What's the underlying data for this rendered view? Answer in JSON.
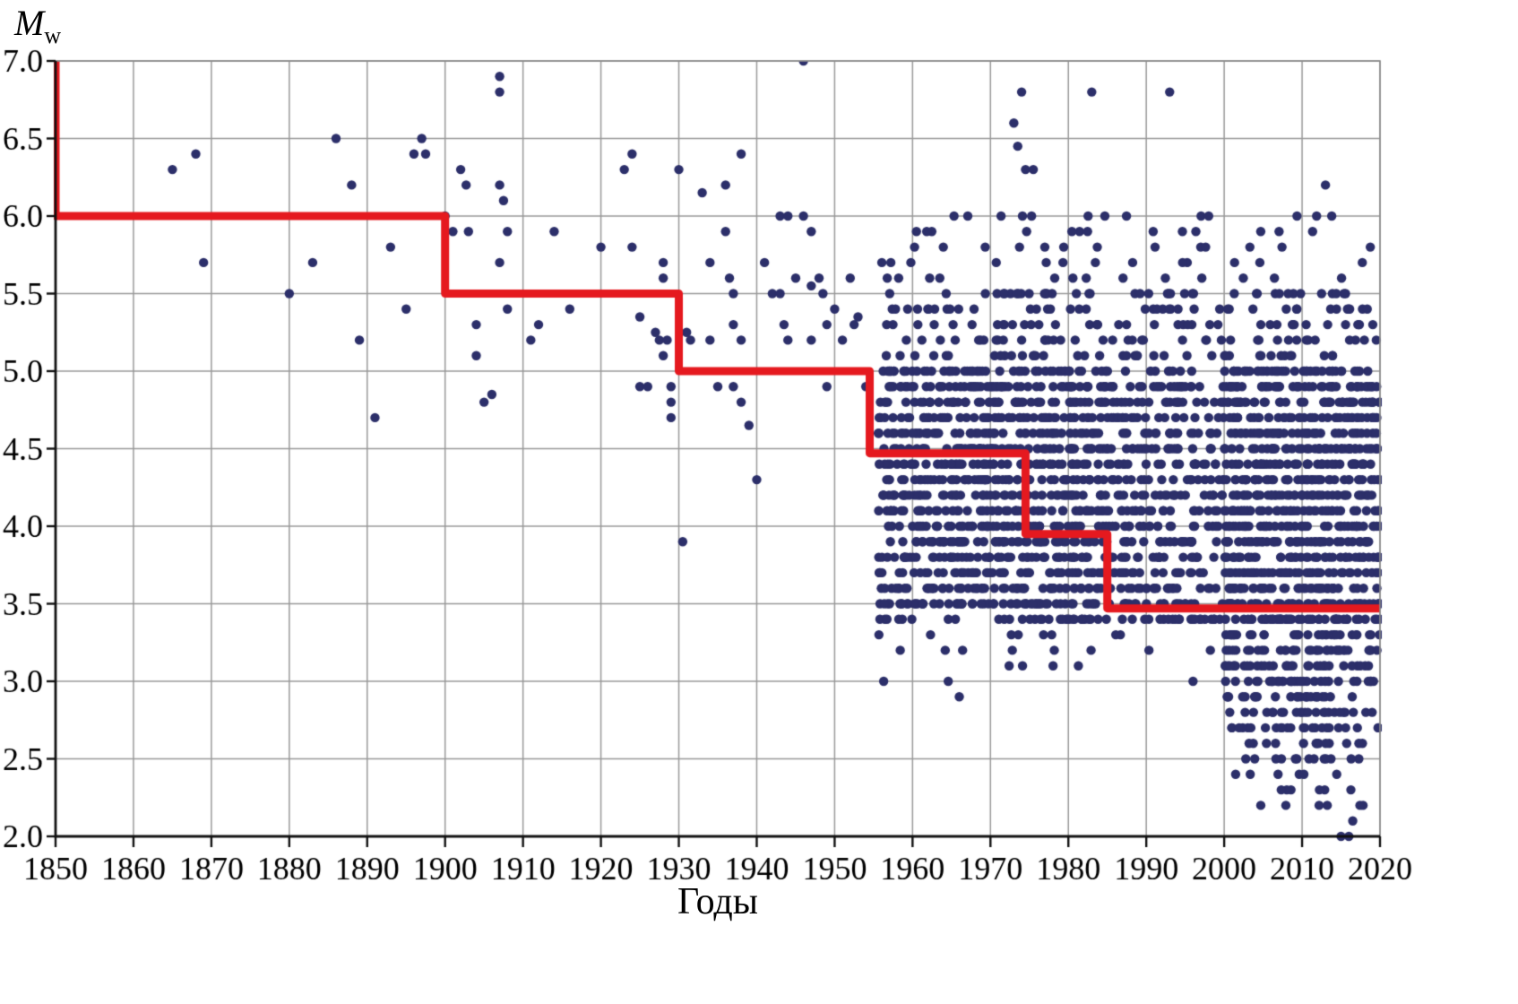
{
  "chart_data": {
    "type": "scatter",
    "xlabel": "Годы",
    "ylabel_main": "M",
    "ylabel_sub": "w",
    "xlim": [
      1850,
      2020
    ],
    "ylim": [
      2.0,
      7.0
    ],
    "x_ticks": [
      1850,
      1860,
      1870,
      1880,
      1890,
      1900,
      1910,
      1920,
      1930,
      1940,
      1950,
      1960,
      1970,
      1980,
      1990,
      2000,
      2010,
      2020
    ],
    "y_ticks": [
      2.0,
      2.5,
      3.0,
      3.5,
      4.0,
      4.5,
      5.0,
      5.5,
      6.0,
      6.5,
      7.0
    ],
    "grid": true,
    "grid_color": "#999999",
    "axis_color": "#111111",
    "point_color": "#2c2f6a",
    "point_radius": 5.2,
    "mag_step": 0.1,
    "random_seed": 7,
    "completeness_line": {
      "color": "#e5191f",
      "width": 9,
      "points": [
        [
          1850,
          7.0
        ],
        [
          1850,
          6.0
        ],
        [
          1900,
          6.0
        ],
        [
          1900,
          5.5
        ],
        [
          1930,
          5.5
        ],
        [
          1930,
          5.0
        ],
        [
          1954.5,
          5.0
        ],
        [
          1954.5,
          4.47
        ],
        [
          1974.5,
          4.47
        ],
        [
          1974.5,
          3.95
        ],
        [
          1985,
          3.95
        ],
        [
          1985,
          3.47
        ],
        [
          2020,
          3.47
        ]
      ]
    },
    "events": [
      [
        1865,
        6.3
      ],
      [
        1868,
        6.4
      ],
      [
        1869,
        5.7
      ],
      [
        1880,
        5.5
      ],
      [
        1883,
        5.7
      ],
      [
        1886,
        6.5
      ],
      [
        1888,
        6.2
      ],
      [
        1889,
        5.2
      ],
      [
        1891,
        4.7
      ],
      [
        1893,
        5.8
      ],
      [
        1895,
        5.4
      ],
      [
        1896,
        6.4
      ],
      [
        1897,
        6.5
      ],
      [
        1897.5,
        6.4
      ],
      [
        1900,
        6.0
      ],
      [
        1901,
        5.9
      ],
      [
        1902,
        6.3
      ],
      [
        1902.7,
        6.2
      ],
      [
        1903,
        5.9
      ],
      [
        1904,
        5.3
      ],
      [
        1904,
        5.1
      ],
      [
        1905,
        4.8
      ],
      [
        1906,
        4.85
      ],
      [
        1907,
        6.9
      ],
      [
        1907,
        6.8
      ],
      [
        1907,
        6.2
      ],
      [
        1907.5,
        6.1
      ],
      [
        1908,
        5.9
      ],
      [
        1907,
        5.7
      ],
      [
        1908,
        5.4
      ],
      [
        1911,
        5.2
      ],
      [
        1912,
        5.3
      ],
      [
        1914,
        5.9
      ],
      [
        1916,
        5.4
      ],
      [
        1920,
        5.8
      ],
      [
        1923,
        6.3
      ],
      [
        1924,
        6.4
      ],
      [
        1924,
        5.8
      ],
      [
        1925,
        5.35
      ],
      [
        1925,
        4.9
      ],
      [
        1926,
        4.9
      ],
      [
        1927,
        5.25
      ],
      [
        1927.5,
        5.2
      ],
      [
        1928,
        5.7
      ],
      [
        1928,
        5.6
      ],
      [
        1928.5,
        5.2
      ],
      [
        1928,
        5.1
      ],
      [
        1929,
        4.9
      ],
      [
        1929,
        4.8
      ],
      [
        1929,
        4.7
      ],
      [
        1930,
        6.3
      ],
      [
        1930.5,
        3.9
      ],
      [
        1931,
        5.25
      ],
      [
        1931.5,
        5.2
      ],
      [
        1933,
        6.15
      ],
      [
        1934,
        5.7
      ],
      [
        1934,
        5.2
      ],
      [
        1935,
        4.9
      ],
      [
        1936,
        6.2
      ],
      [
        1936,
        5.9
      ],
      [
        1936.5,
        5.6
      ],
      [
        1937,
        5.5
      ],
      [
        1937,
        5.3
      ],
      [
        1937,
        4.9
      ],
      [
        1938,
        6.4
      ],
      [
        1938,
        5.2
      ],
      [
        1938,
        4.8
      ],
      [
        1939,
        4.65
      ],
      [
        1940,
        4.3
      ],
      [
        1941,
        5.7
      ],
      [
        1942,
        5.5
      ],
      [
        1943,
        6.0
      ],
      [
        1943,
        5.5
      ],
      [
        1943.5,
        5.3
      ],
      [
        1944,
        6.0
      ],
      [
        1944,
        5.2
      ],
      [
        1945,
        5.6
      ],
      [
        1946,
        7.0
      ],
      [
        1946,
        6.0
      ],
      [
        1947,
        5.9
      ],
      [
        1947,
        5.55
      ],
      [
        1947,
        5.2
      ],
      [
        1948,
        5.6
      ],
      [
        1948.5,
        5.5
      ],
      [
        1949,
        5.3
      ],
      [
        1949,
        4.9
      ],
      [
        1950,
        5.4
      ],
      [
        1951,
        5.2
      ],
      [
        1952,
        5.6
      ],
      [
        1952.5,
        5.3
      ],
      [
        1953,
        5.35
      ],
      [
        1954,
        4.9
      ],
      [
        1966,
        2.9
      ],
      [
        1973,
        6.6
      ],
      [
        1973.5,
        6.45
      ],
      [
        1974,
        6.8
      ],
      [
        1974.5,
        6.3
      ],
      [
        1975.5,
        6.3
      ],
      [
        1983,
        6.8
      ],
      [
        1993,
        6.8
      ],
      [
        1996,
        3.0
      ],
      [
        2013,
        6.2
      ],
      [
        2015,
        2.0
      ],
      [
        2016,
        2.0
      ],
      [
        2016.5,
        2.1
      ]
    ],
    "dense_clusters": [
      {
        "y0": 1955.6,
        "y1": 1975,
        "m0": 3.5,
        "m1": 5.0,
        "n": 38
      },
      {
        "y0": 1955.6,
        "y1": 1975,
        "m0": 5.1,
        "m1": 5.5,
        "n": 11
      },
      {
        "y0": 1955.6,
        "y1": 1975,
        "m0": 5.6,
        "m1": 6.0,
        "n": 4
      },
      {
        "y0": 1955.6,
        "y1": 1975,
        "m0": 3.4,
        "m1": 3.4,
        "n": 12
      },
      {
        "y0": 1955.6,
        "y1": 1975,
        "m0": 3.2,
        "m1": 3.3,
        "n": 4
      },
      {
        "y0": 1955.6,
        "y1": 1975,
        "m0": 3.0,
        "m1": 3.1,
        "n": 2
      },
      {
        "y0": 1975,
        "y1": 1985,
        "m0": 3.4,
        "m1": 5.0,
        "n": 19
      },
      {
        "y0": 1975,
        "y1": 1985,
        "m0": 5.1,
        "m1": 5.5,
        "n": 7
      },
      {
        "y0": 1975,
        "y1": 1985,
        "m0": 5.6,
        "m1": 6.0,
        "n": 3
      },
      {
        "y0": 1975,
        "y1": 1985,
        "m0": 3.1,
        "m1": 3.3,
        "n": 2
      },
      {
        "y0": 1985,
        "y1": 2000,
        "m0": 3.4,
        "m1": 4.9,
        "n": 21
      },
      {
        "y0": 1985,
        "y1": 2000,
        "m0": 5.0,
        "m1": 5.5,
        "n": 9
      },
      {
        "y0": 1985,
        "y1": 2000,
        "m0": 5.6,
        "m1": 6.0,
        "n": 3
      },
      {
        "y0": 1985,
        "y1": 2000,
        "m0": 3.2,
        "m1": 3.3,
        "n": 2
      },
      {
        "y0": 2000,
        "y1": 2020,
        "m0": 3.4,
        "m1": 5.0,
        "n": 46
      },
      {
        "y0": 2000,
        "y1": 2020,
        "m0": 3.0,
        "m1": 3.3,
        "n": 34
      },
      {
        "y0": 2000,
        "y1": 2020,
        "m0": 2.7,
        "m1": 2.9,
        "n": 24
      },
      {
        "y0": 2001,
        "y1": 2020,
        "m0": 2.5,
        "m1": 2.6,
        "n": 13
      },
      {
        "y0": 2001,
        "y1": 2020,
        "m0": 2.2,
        "m1": 2.4,
        "n": 6
      },
      {
        "y0": 2000,
        "y1": 2020,
        "m0": 5.1,
        "m1": 5.5,
        "n": 13
      },
      {
        "y0": 2000,
        "y1": 2020,
        "m0": 5.6,
        "m1": 6.0,
        "n": 3
      }
    ]
  }
}
